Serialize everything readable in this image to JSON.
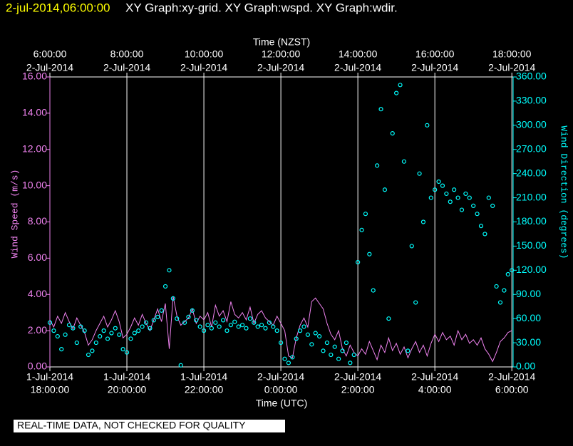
{
  "chart_data": {
    "type": "line",
    "timestamp": "2-jul-2014,06:00:00",
    "title": "XY Graph:xy-grid.  XY Graph:wspd.  XY Graph:wdir.",
    "x_label": "Time (UTC)",
    "x2_label": "Time (NZST)",
    "y_label": "Wind Speed (m/s)",
    "y2_label": "Wind Direction (degrees)",
    "note": "REAL-TIME DATA, NOT CHECKED FOR QUALITY",
    "xlim": [
      "2014-07-01T18:00",
      "2014-07-02T06:02"
    ],
    "xticks": [
      {
        "value": "2014-07-01T18:00",
        "label": [
          "1-Jul-2014",
          "18:00:00"
        ]
      },
      {
        "value": "2014-07-01T20:00",
        "label": [
          "1-Jul-2014",
          "20:00:00"
        ]
      },
      {
        "value": "2014-07-01T22:00",
        "label": [
          "1-Jul-2014",
          "22:00:00"
        ]
      },
      {
        "value": "2014-07-02T00:00",
        "label": [
          "2-Jul-2014",
          "0:00:00"
        ]
      },
      {
        "value": "2014-07-02T02:00",
        "label": [
          "2-Jul-2014",
          "2:00:00"
        ]
      },
      {
        "value": "2014-07-02T04:00",
        "label": [
          "2-Jul-2014",
          "4:00:00"
        ]
      },
      {
        "value": "2014-07-02T06:00",
        "label": [
          "2-Jul-2014",
          "6:00:00"
        ]
      }
    ],
    "x2ticks": [
      {
        "value": "2014-07-01T18:00",
        "label": [
          "6:00:00",
          "2-Jul-2014"
        ]
      },
      {
        "value": "2014-07-01T20:00",
        "label": [
          "8:00:00",
          "2-Jul-2014"
        ]
      },
      {
        "value": "2014-07-01T22:00",
        "label": [
          "10:00:00",
          "2-Jul-2014"
        ]
      },
      {
        "value": "2014-07-02T00:00",
        "label": [
          "12:00:00",
          "2-Jul-2014"
        ]
      },
      {
        "value": "2014-07-02T02:00",
        "label": [
          "14:00:00",
          "2-Jul-2014"
        ]
      },
      {
        "value": "2014-07-02T04:00",
        "label": [
          "16:00:00",
          "2-Jul-2014"
        ]
      },
      {
        "value": "2014-07-02T06:00",
        "label": [
          "18:00:00",
          "2-Jul-2014"
        ]
      }
    ],
    "ylim": [
      0,
      16
    ],
    "yticks": [
      {
        "value": 0,
        "label": "0.00"
      },
      {
        "value": 2,
        "label": "2.00"
      },
      {
        "value": 4,
        "label": "4.00"
      },
      {
        "value": 6,
        "label": "6.00"
      },
      {
        "value": 8,
        "label": "8.00"
      },
      {
        "value": 10,
        "label": "10.00"
      },
      {
        "value": 12,
        "label": "12.00"
      },
      {
        "value": 14,
        "label": "14.00"
      },
      {
        "value": 16,
        "label": "16.00"
      }
    ],
    "y2lim": [
      0,
      360
    ],
    "y2ticks": [
      {
        "value": 0,
        "label": "0.00"
      },
      {
        "value": 30,
        "label": "30.00"
      },
      {
        "value": 60,
        "label": "60.00"
      },
      {
        "value": 90,
        "label": "90.00"
      },
      {
        "value": 120,
        "label": "120.00"
      },
      {
        "value": 150,
        "label": "150.00"
      },
      {
        "value": 180,
        "label": "180.00"
      },
      {
        "value": 210,
        "label": "210.00"
      },
      {
        "value": 240,
        "label": "240.00"
      },
      {
        "value": 270,
        "label": "270.00"
      },
      {
        "value": 300,
        "label": "300.00"
      },
      {
        "value": 330,
        "label": "330.00"
      },
      {
        "value": 360,
        "label": "360.00"
      }
    ],
    "grid": "x",
    "x": [
      "2014-07-01T18:00",
      "2014-07-01T18:06",
      "2014-07-01T18:12",
      "2014-07-01T18:18",
      "2014-07-01T18:24",
      "2014-07-01T18:30",
      "2014-07-01T18:36",
      "2014-07-01T18:42",
      "2014-07-01T18:48",
      "2014-07-01T18:54",
      "2014-07-01T19:00",
      "2014-07-01T19:06",
      "2014-07-01T19:12",
      "2014-07-01T19:18",
      "2014-07-01T19:24",
      "2014-07-01T19:30",
      "2014-07-01T19:36",
      "2014-07-01T19:42",
      "2014-07-01T19:48",
      "2014-07-01T19:54",
      "2014-07-01T20:00",
      "2014-07-01T20:06",
      "2014-07-01T20:12",
      "2014-07-01T20:18",
      "2014-07-01T20:24",
      "2014-07-01T20:30",
      "2014-07-01T20:36",
      "2014-07-01T20:42",
      "2014-07-01T20:48",
      "2014-07-01T20:54",
      "2014-07-01T21:00",
      "2014-07-01T21:06",
      "2014-07-01T21:12",
      "2014-07-01T21:18",
      "2014-07-01T21:24",
      "2014-07-01T21:30",
      "2014-07-01T21:36",
      "2014-07-01T21:42",
      "2014-07-01T21:48",
      "2014-07-01T21:54",
      "2014-07-01T22:00",
      "2014-07-01T22:06",
      "2014-07-01T22:12",
      "2014-07-01T22:18",
      "2014-07-01T22:24",
      "2014-07-01T22:30",
      "2014-07-01T22:36",
      "2014-07-01T22:42",
      "2014-07-01T22:48",
      "2014-07-01T22:54",
      "2014-07-01T23:00",
      "2014-07-01T23:06",
      "2014-07-01T23:12",
      "2014-07-01T23:18",
      "2014-07-01T23:24",
      "2014-07-01T23:30",
      "2014-07-01T23:36",
      "2014-07-01T23:42",
      "2014-07-01T23:48",
      "2014-07-01T23:54",
      "2014-07-02T00:00",
      "2014-07-02T00:06",
      "2014-07-02T00:12",
      "2014-07-02T00:18",
      "2014-07-02T00:24",
      "2014-07-02T00:30",
      "2014-07-02T00:36",
      "2014-07-02T00:42",
      "2014-07-02T00:48",
      "2014-07-02T00:54",
      "2014-07-02T01:00",
      "2014-07-02T01:06",
      "2014-07-02T01:12",
      "2014-07-02T01:18",
      "2014-07-02T01:24",
      "2014-07-02T01:30",
      "2014-07-02T01:36",
      "2014-07-02T01:42",
      "2014-07-02T01:48",
      "2014-07-02T01:54",
      "2014-07-02T02:00",
      "2014-07-02T02:06",
      "2014-07-02T02:12",
      "2014-07-02T02:18",
      "2014-07-02T02:24",
      "2014-07-02T02:30",
      "2014-07-02T02:36",
      "2014-07-02T02:42",
      "2014-07-02T02:48",
      "2014-07-02T02:54",
      "2014-07-02T03:00",
      "2014-07-02T03:06",
      "2014-07-02T03:12",
      "2014-07-02T03:18",
      "2014-07-02T03:24",
      "2014-07-02T03:30",
      "2014-07-02T03:36",
      "2014-07-02T03:42",
      "2014-07-02T03:48",
      "2014-07-02T03:54",
      "2014-07-02T04:00",
      "2014-07-02T04:06",
      "2014-07-02T04:12",
      "2014-07-02T04:18",
      "2014-07-02T04:24",
      "2014-07-02T04:30",
      "2014-07-02T04:36",
      "2014-07-02T04:42",
      "2014-07-02T04:48",
      "2014-07-02T04:54",
      "2014-07-02T05:00",
      "2014-07-02T05:06",
      "2014-07-02T05:12",
      "2014-07-02T05:18",
      "2014-07-02T05:24",
      "2014-07-02T05:30",
      "2014-07-02T05:36",
      "2014-07-02T05:42",
      "2014-07-02T05:48",
      "2014-07-02T05:54",
      "2014-07-02T06:00"
    ],
    "series": [
      {
        "color": "#ee82ee",
        "style": "line",
        "values": [
          2.6,
          2.2,
          2.8,
          2.4,
          3.0,
          2.5,
          2.1,
          2.7,
          2.3,
          1.9,
          1.2,
          1.5,
          2.0,
          2.4,
          2.8,
          2.2,
          2.6,
          3.1,
          2.5,
          1.6,
          1.8,
          2.2,
          2.7,
          2.3,
          2.9,
          2.4,
          2.0,
          2.6,
          3.2,
          2.5,
          3.5,
          1.0,
          3.9,
          2.8,
          2.3,
          2.5,
          2.7,
          3.2,
          2.4,
          2.8,
          2.6,
          3.0,
          2.2,
          3.4,
          2.8,
          3.1,
          2.5,
          3.6,
          2.9,
          2.7,
          3.0,
          2.6,
          3.3,
          2.4,
          2.9,
          3.1,
          2.7,
          2.5,
          2.3,
          2.8,
          2.4,
          2.0,
          0.6,
          0.5,
          1.6,
          2.3,
          2.7,
          2.2,
          3.6,
          3.8,
          3.5,
          3.2,
          2.4,
          1.8,
          1.5,
          2.0,
          1.0,
          0.6,
          1.2,
          0.8,
          0.6,
          1.0,
          0.7,
          1.4,
          0.9,
          0.4,
          1.2,
          0.8,
          1.6,
          0.9,
          1.3,
          0.7,
          1.1,
          0.5,
          1.0,
          1.4,
          0.8,
          1.2,
          0.6,
          1.3,
          1.8,
          1.4,
          1.9,
          1.5,
          1.7,
          1.2,
          2.0,
          1.5,
          1.8,
          1.3,
          1.5,
          1.2,
          1.6,
          1.0,
          0.7,
          0.3,
          0.8,
          1.4,
          1.6,
          1.9,
          2.0
        ]
      },
      {
        "color": "#00ffff",
        "style": "scatter",
        "axis": "y2",
        "values": [
          55,
          45,
          38,
          22,
          40,
          52,
          48,
          30,
          50,
          45,
          15,
          20,
          30,
          38,
          45,
          35,
          42,
          48,
          40,
          22,
          18,
          35,
          42,
          45,
          50,
          55,
          48,
          58,
          62,
          70,
          100,
          120,
          85,
          60,
          2,
          55,
          62,
          70,
          58,
          50,
          45,
          52,
          48,
          55,
          50,
          58,
          45,
          52,
          56,
          50,
          52,
          48,
          60,
          55,
          50,
          52,
          48,
          55,
          50,
          45,
          30,
          10,
          5,
          12,
          35,
          45,
          50,
          40,
          28,
          42,
          38,
          20,
          30,
          15,
          25,
          10,
          20,
          30,
          5,
          15,
          130,
          170,
          190,
          140,
          95,
          250,
          320,
          220,
          60,
          290,
          340,
          350,
          255,
          20,
          150,
          80,
          240,
          180,
          300,
          210,
          220,
          230,
          225,
          215,
          205,
          220,
          210,
          195,
          215,
          210,
          200,
          190,
          175,
          165,
          210,
          200,
          100,
          80,
          95,
          115,
          120
        ]
      }
    ]
  }
}
